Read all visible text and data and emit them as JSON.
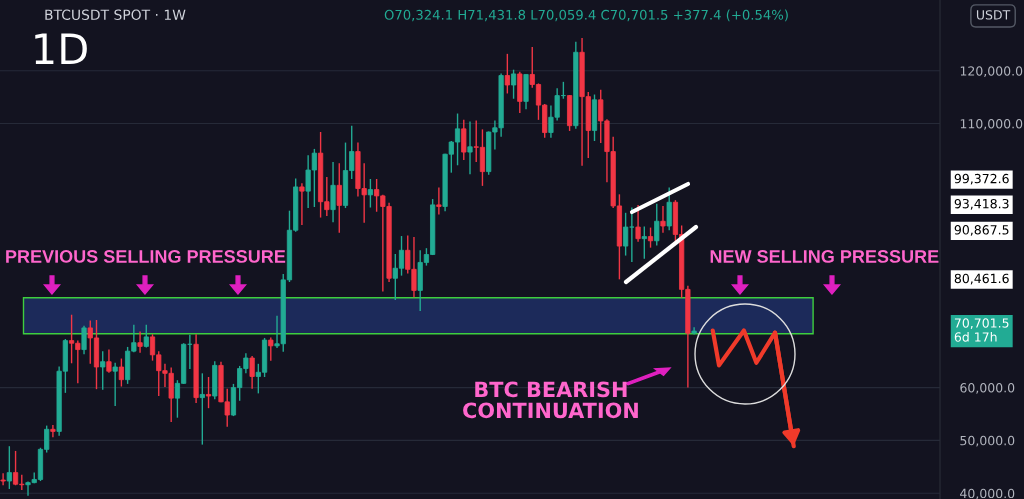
{
  "chart_data": {
    "type": "candlestick",
    "title": "1D",
    "subtitle": "BTCUSDT SPOT · 1W",
    "categories": [
      null,
      null,
      null,
      null,
      null,
      null,
      null,
      null,
      null,
      null,
      null,
      null,
      null,
      null,
      null,
      null,
      null,
      null,
      null,
      null,
      null,
      null,
      null,
      null,
      null,
      null,
      null,
      null,
      null,
      null,
      null,
      null,
      null,
      null,
      null,
      null,
      null,
      null,
      null,
      null,
      null,
      null,
      null,
      null,
      null,
      null,
      null,
      null,
      null,
      null,
      null,
      null,
      null,
      null,
      null,
      null,
      null,
      null,
      null,
      null,
      null,
      null,
      null,
      null,
      null,
      null,
      null,
      null,
      null,
      null,
      null,
      null,
      null,
      null,
      null,
      null,
      null,
      null,
      null,
      null,
      null,
      null,
      null,
      null,
      null,
      null,
      null,
      null,
      null,
      null,
      null,
      null,
      null,
      null,
      null,
      null,
      null,
      null,
      null,
      null,
      null,
      null,
      null,
      null,
      null,
      null,
      null,
      null,
      null,
      null,
      null,
      null,
      null,
      null,
      null,
      null,
      null,
      null,
      null,
      null,
      null,
      null,
      null,
      null,
      null,
      null,
      null,
      null,
      null,
      null,
      null,
      null,
      null,
      null,
      null,
      null,
      null,
      null,
      null,
      null,
      null,
      null,
      null,
      null,
      null,
      null,
      null,
      null,
      null,
      null,
      null
    ],
    "ohlc": [
      [
        42500,
        43800,
        41500,
        42300
      ],
      [
        42300,
        48900,
        40800,
        43900
      ],
      [
        43900,
        48000,
        41500,
        41700
      ],
      [
        41700,
        43500,
        40600,
        41600
      ],
      [
        41600,
        42200,
        39500,
        42000
      ],
      [
        42000,
        43900,
        41900,
        42600
      ],
      [
        42600,
        48600,
        42300,
        48300
      ],
      [
        48300,
        52800,
        47700,
        52100
      ],
      [
        52100,
        52900,
        50600,
        51700
      ],
      [
        51700,
        64000,
        50900,
        63100
      ],
      [
        63100,
        69200,
        59000,
        68900
      ],
      [
        68900,
        73800,
        64600,
        68400
      ],
      [
        68400,
        68900,
        60800,
        67200
      ],
      [
        67200,
        71700,
        66300,
        71300
      ],
      [
        71300,
        72700,
        64500,
        69400
      ],
      [
        69400,
        72800,
        59700,
        63900
      ],
      [
        63900,
        66900,
        59600,
        64900
      ],
      [
        64900,
        67200,
        62800,
        63100
      ],
      [
        63100,
        64700,
        56500,
        63900
      ],
      [
        63900,
        65500,
        60200,
        61500
      ],
      [
        61500,
        67700,
        60700,
        66900
      ],
      [
        66900,
        71900,
        66700,
        68500
      ],
      [
        68500,
        70600,
        66600,
        67800
      ],
      [
        67800,
        71900,
        67600,
        69600
      ],
      [
        69600,
        70100,
        65100,
        66200
      ],
      [
        66200,
        66900,
        58400,
        63200
      ],
      [
        63200,
        64500,
        60100,
        62700
      ],
      [
        62700,
        63800,
        53500,
        58000
      ],
      [
        58000,
        61400,
        54300,
        60800
      ],
      [
        60800,
        68400,
        60700,
        68200
      ],
      [
        68200,
        70000,
        63500,
        68200
      ],
      [
        68200,
        70100,
        57100,
        58100
      ],
      [
        58100,
        62700,
        49200,
        58700
      ],
      [
        58700,
        62000,
        56100,
        58400
      ],
      [
        58400,
        65000,
        57800,
        64200
      ],
      [
        64200,
        64900,
        57200,
        57300
      ],
      [
        57300,
        59800,
        52600,
        54800
      ],
      [
        54800,
        60700,
        54600,
        60000
      ],
      [
        60000,
        64100,
        57500,
        63600
      ],
      [
        63600,
        66500,
        62700,
        65600
      ],
      [
        65600,
        66000,
        59800,
        62100
      ],
      [
        62100,
        64500,
        58900,
        62900
      ],
      [
        62900,
        69400,
        62000,
        69000
      ],
      [
        69000,
        69500,
        65100,
        67900
      ],
      [
        67900,
        73600,
        67500,
        68300
      ],
      [
        68300,
        81500,
        66800,
        80400
      ],
      [
        80400,
        93500,
        80000,
        89800
      ],
      [
        89800,
        99600,
        89500,
        98000
      ],
      [
        98000,
        98700,
        90800,
        97200
      ],
      [
        97200,
        104000,
        94000,
        101200
      ],
      [
        101200,
        105200,
        94200,
        104400
      ],
      [
        104400,
        108400,
        92200,
        95200
      ],
      [
        95200,
        99900,
        92500,
        93700
      ],
      [
        93700,
        102700,
        91300,
        98300
      ],
      [
        98300,
        102500,
        89300,
        94500
      ],
      [
        94500,
        106400,
        94000,
        101100
      ],
      [
        101100,
        109600,
        99500,
        104700
      ],
      [
        104700,
        106400,
        96200,
        97700
      ],
      [
        97700,
        102500,
        91200,
        96500
      ],
      [
        96500,
        99500,
        94100,
        97500
      ],
      [
        97500,
        99500,
        93300,
        96300
      ],
      [
        96300,
        96500,
        78200,
        94300
      ],
      [
        94300,
        95000,
        80000,
        80700
      ],
      [
        80700,
        85300,
        76600,
        82600
      ],
      [
        82600,
        88700,
        81200,
        86000
      ],
      [
        86000,
        88800,
        81600,
        82400
      ],
      [
        82400,
        88500,
        77100,
        78400
      ],
      [
        78400,
        86000,
        74500,
        83700
      ],
      [
        83700,
        86400,
        83100,
        85200
      ],
      [
        85200,
        95700,
        85100,
        94600
      ],
      [
        94600,
        97900,
        92800,
        94300
      ],
      [
        94300,
        104300,
        93400,
        104200
      ],
      [
        104200,
        106700,
        100700,
        106500
      ],
      [
        106500,
        111900,
        102100,
        109000
      ],
      [
        109000,
        110700,
        103100,
        104600
      ],
      [
        104600,
        110400,
        100400,
        105600
      ],
      [
        105600,
        110600,
        102700,
        105500
      ],
      [
        105500,
        108900,
        98200,
        100900
      ],
      [
        100900,
        108500,
        100300,
        108400
      ],
      [
        108400,
        110600,
        105100,
        109200
      ],
      [
        109200,
        119500,
        107500,
        119100
      ],
      [
        119100,
        123200,
        115700,
        117300
      ],
      [
        117300,
        120200,
        114700,
        119400
      ],
      [
        119400,
        119800,
        112000,
        114200
      ],
      [
        114200,
        119300,
        112700,
        119300
      ],
      [
        119300,
        124500,
        116800,
        117400
      ],
      [
        117400,
        117600,
        110700,
        113500
      ],
      [
        113500,
        113700,
        107300,
        108300
      ],
      [
        108300,
        113400,
        107300,
        111200
      ],
      [
        111200,
        116700,
        110600,
        115300
      ],
      [
        115300,
        117900,
        114700,
        115300
      ],
      [
        115300,
        115400,
        108600,
        109600
      ],
      [
        109600,
        125500,
        109000,
        123500
      ],
      [
        123500,
        126200,
        102000,
        115100
      ],
      [
        115100,
        116000,
        103500,
        108700
      ],
      [
        108700,
        115500,
        106700,
        114500
      ],
      [
        114500,
        116400,
        106300,
        110500
      ],
      [
        110500,
        110800,
        98900,
        104700
      ],
      [
        104700,
        107500,
        94000,
        94400
      ],
      [
        94400,
        96600,
        80500,
        86800
      ],
      [
        86800,
        93100,
        85000,
        90400
      ],
      [
        90400,
        94100,
        83800,
        90400
      ],
      [
        90400,
        94600,
        87600,
        88200
      ],
      [
        88200,
        90500,
        84400,
        88600
      ],
      [
        88600,
        90300,
        86500,
        87800
      ],
      [
        87800,
        94800,
        86900,
        91500
      ],
      [
        91500,
        94400,
        89300,
        90600
      ],
      [
        90600,
        97900,
        89800,
        95100
      ],
      [
        95100,
        95500,
        87300,
        89000
      ],
      [
        89000,
        90700,
        77000,
        78600
      ],
      [
        78600,
        79300,
        60000,
        70300
      ],
      [
        70324.1,
        71431.8,
        70059.4,
        70701.5
      ],
      null,
      null,
      null,
      null,
      null,
      null,
      null,
      null,
      null,
      null,
      null,
      null,
      null,
      null,
      null,
      null,
      null,
      null,
      null,
      null,
      null,
      null,
      null,
      null,
      null,
      null,
      null,
      null,
      null,
      null,
      null,
      null,
      null,
      null,
      null,
      null,
      null,
      null,
      null
    ],
    "series": [
      {
        "type": "line",
        "color": "#f03a2a",
        "values": [
          null,
          null,
          null,
          null,
          null,
          null,
          null,
          null,
          null,
          null,
          null,
          null,
          null,
          null,
          null,
          null,
          null,
          null,
          null,
          null,
          null,
          null,
          null,
          null,
          null,
          null,
          null,
          null,
          null,
          null,
          null,
          null,
          null,
          null,
          null,
          null,
          null,
          null,
          null,
          null,
          null,
          null,
          null,
          null,
          null,
          null,
          null,
          null,
          null,
          null,
          null,
          null,
          null,
          null,
          null,
          null,
          null,
          null,
          null,
          null,
          null,
          null,
          null,
          null,
          null,
          null,
          null,
          null,
          null,
          null,
          null,
          null,
          null,
          null,
          null,
          null,
          null,
          null,
          null,
          null,
          null,
          null,
          null,
          null,
          null,
          null,
          null,
          null,
          null,
          null,
          null,
          null,
          null,
          null,
          null,
          null,
          null,
          null,
          null,
          null,
          null,
          null,
          null,
          null,
          null,
          null,
          null,
          null,
          null,
          null,
          null,
          null,
          null,
          null,
          70800,
          64200,
          null,
          null,
          null,
          70800,
          null,
          64700,
          null,
          null,
          70400,
          null,
          null,
          48900,
          null,
          null,
          null,
          null,
          null,
          null,
          null,
          null,
          null,
          null,
          null,
          null,
          null,
          null,
          null,
          null,
          null,
          null,
          null,
          null,
          null,
          null,
          null
        ]
      }
    ],
    "colors": [
      "#f23645",
      "#22ab94",
      "#f23645",
      "#f23645",
      "#22ab94",
      "#22ab94",
      "#22ab94",
      "#22ab94",
      "#f23645",
      "#22ab94",
      "#22ab94",
      "#f23645",
      "#f23645",
      "#22ab94",
      "#f23645",
      "#f23645",
      "#22ab94",
      "#f23645",
      "#22ab94",
      "#f23645",
      "#22ab94",
      "#22ab94",
      "#f23645",
      "#22ab94",
      "#f23645",
      "#f23645",
      "#f23645",
      "#f23645",
      "#22ab94",
      "#22ab94",
      "#22ab94",
      "#f23645",
      "#22ab94",
      "#f23645",
      "#22ab94",
      "#f23645",
      "#f23645",
      "#22ab94",
      "#22ab94",
      "#22ab94",
      "#f23645",
      "#22ab94",
      "#22ab94",
      "#f23645",
      "#22ab94",
      "#22ab94",
      "#22ab94",
      "#22ab94",
      "#f23645",
      "#22ab94",
      "#22ab94",
      "#f23645",
      "#f23645",
      "#22ab94",
      "#f23645",
      "#22ab94",
      "#22ab94",
      "#f23645",
      "#f23645",
      "#22ab94",
      "#f23645",
      "#f23645",
      "#f23645",
      "#22ab94",
      "#22ab94",
      "#f23645",
      "#f23645",
      "#22ab94",
      "#22ab94",
      "#22ab94",
      "#f23645",
      "#22ab94",
      "#22ab94",
      "#22ab94",
      "#f23645",
      "#22ab94",
      "#f23645",
      "#f23645",
      "#22ab94",
      "#22ab94",
      "#22ab94",
      "#f23645",
      "#22ab94",
      "#f23645",
      "#22ab94",
      "#f23645",
      "#f23645",
      "#f23645",
      "#22ab94",
      "#22ab94",
      "#22ab94",
      "#f23645",
      "#22ab94",
      "#f23645",
      "#f23645",
      "#22ab94",
      "#f23645",
      "#f23645",
      "#f23645",
      "#f23645",
      "#22ab94",
      "#22ab94",
      "#f23645",
      "#22ab94",
      "#f23645",
      "#22ab94",
      "#f23645",
      "#22ab94",
      "#f23645",
      "#f23645",
      "#f23645",
      "#22ab94",
      null,
      null,
      null,
      null,
      null,
      null,
      null,
      null,
      null,
      null,
      null,
      null,
      null,
      null,
      null,
      null,
      null,
      null,
      null,
      null,
      null,
      null,
      null,
      null,
      null,
      null,
      null,
      null,
      null,
      null,
      null,
      null,
      null,
      null,
      null,
      null,
      null,
      null,
      null
    ],
    "ylim": [
      38900,
      133400
    ],
    "yticks": [
      {
        "value": 40000,
        "label": "40,000.0"
      },
      {
        "value": 50000,
        "label": "50,000.0"
      },
      {
        "value": 60000,
        "label": "60,000.0"
      },
      {
        "value": 110000,
        "label": "110,000.0"
      },
      {
        "value": 120000,
        "label": "120,000.0"
      }
    ],
    "grid": "y",
    "bands": [
      {
        "axis": "y",
        "from": 70200,
        "to": 77000,
        "color": "#1c2a5a"
      }
    ],
    "annotations": [
      {
        "text": "O70,324.1 H71,431.8 L70,059.4 C70,701.5 +377.4 (+0.54%)"
      },
      {
        "text": "USDT"
      },
      {
        "text": "PREVIOUS SELLING PRESSURE"
      },
      {
        "text": "NEW SELLING PRESSURE"
      },
      {
        "text": "BTC BEARISH\nCONTINUATION"
      },
      "99,372.6",
      "93,418.3",
      "90,867.5",
      "80,461.6",
      "70,701.5\n6d 17h"
    ]
  }
}
